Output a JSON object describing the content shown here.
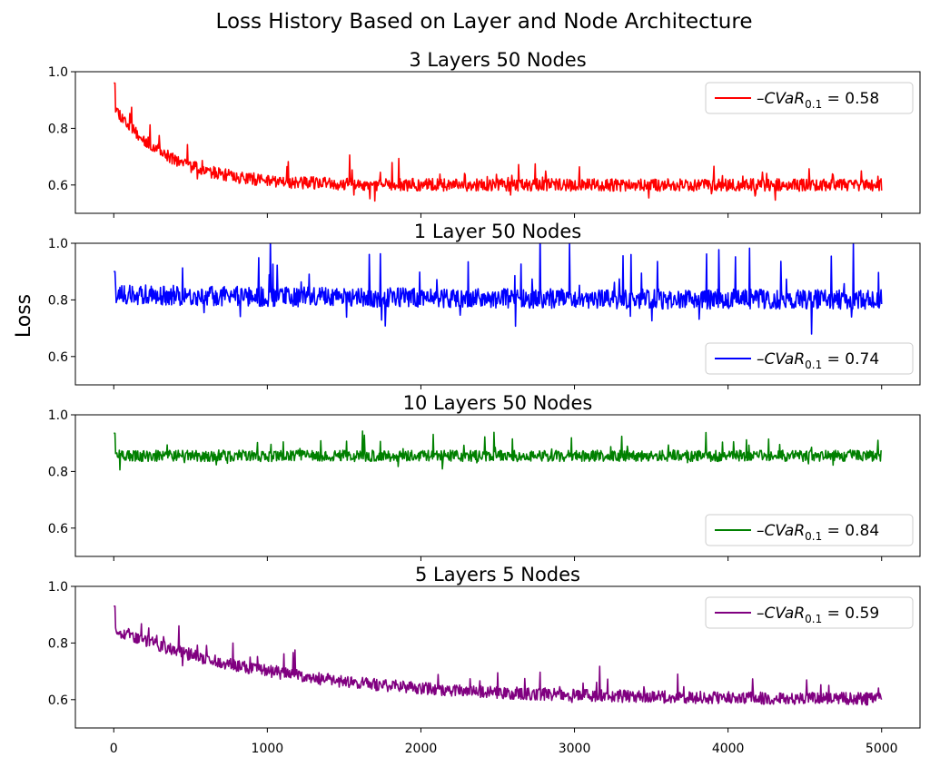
{
  "figure": {
    "suptitle": "Loss History Based on Layer and Node Architecture",
    "ylabel": "Loss"
  },
  "chart_data": [
    {
      "type": "line",
      "title": "3 Layers 50 Nodes",
      "color": "#ff0000",
      "ylim": [
        0.5,
        1.0
      ],
      "xlim": [
        -250,
        5250
      ],
      "yticks": [
        "0.6",
        "0.8",
        "1.0"
      ],
      "legend_position": "top-right",
      "series": [
        {
          "name": "-CVaR0.1 = 0.58",
          "legend_prefix": "–CVaR",
          "legend_sub": "0.1",
          "legend_suffix": " = 0.58",
          "start": 0.88,
          "end": 0.6,
          "decay": 350,
          "noise": 0.022,
          "spike": 0.09,
          "seed": 11
        }
      ]
    },
    {
      "type": "line",
      "title": "1 Layer 50 Nodes",
      "color": "#0000ff",
      "ylim": [
        0.5,
        1.0
      ],
      "xlim": [
        -250,
        5250
      ],
      "yticks": [
        "0.6",
        "0.8",
        "1.0"
      ],
      "legend_position": "bottom-right",
      "series": [
        {
          "name": "-CVaR0.1 = 0.74",
          "legend_prefix": "–CVaR",
          "legend_sub": "0.1",
          "legend_suffix": " = 0.74",
          "start": 0.82,
          "end": 0.8,
          "decay": 2000,
          "noise": 0.035,
          "spike": 0.2,
          "seed": 23
        }
      ]
    },
    {
      "type": "line",
      "title": "10 Layers 50 Nodes",
      "color": "#008000",
      "ylim": [
        0.5,
        1.0
      ],
      "xlim": [
        -250,
        5250
      ],
      "yticks": [
        "0.6",
        "0.8",
        "1.0"
      ],
      "legend_position": "bottom-right",
      "series": [
        {
          "name": "-CVaR0.1 = 0.84",
          "legend_prefix": "–CVaR",
          "legend_sub": "0.1",
          "legend_suffix": " = 0.84",
          "start": 0.855,
          "end": 0.855,
          "decay": 1000,
          "noise": 0.02,
          "spike": 0.08,
          "seed": 37
        }
      ]
    },
    {
      "type": "line",
      "title": "5 Layers 5 Nodes",
      "color": "#800080",
      "ylim": [
        0.5,
        1.0
      ],
      "xlim": [
        -250,
        5250
      ],
      "yticks": [
        "0.6",
        "0.8",
        "1.0"
      ],
      "xticks": [
        "0",
        "1000",
        "2000",
        "3000",
        "4000",
        "5000"
      ],
      "xtick_values": [
        0,
        1000,
        2000,
        3000,
        4000,
        5000
      ],
      "legend_position": "top-right",
      "series": [
        {
          "name": "-CVaR0.1 = 0.59",
          "legend_prefix": "–CVaR",
          "legend_sub": "0.1",
          "legend_suffix": " = 0.59",
          "start": 0.85,
          "end": 0.6,
          "decay": 1100,
          "noise": 0.022,
          "spike": 0.09,
          "seed": 53
        }
      ]
    }
  ]
}
